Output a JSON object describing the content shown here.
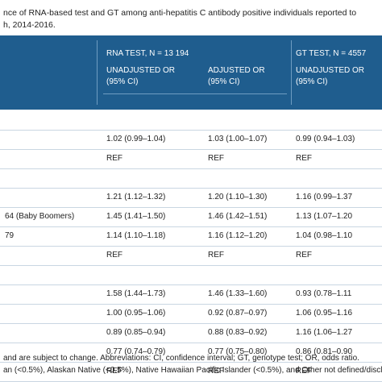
{
  "caption": {
    "line1": "nce of RNA-based test and GT among anti-hepatitis C antibody positive individuals reported to",
    "line2": "h, 2014-2016."
  },
  "header": {
    "rna_test": "RNA TEST, N = 13 194",
    "gt_test": "GT TEST, N = 4557",
    "unadj_rna_1": "UNADJUSTED OR",
    "unadj_rna_2": "(95% CI)",
    "adj_rna_1": "ADJUSTED OR",
    "adj_rna_2": "(95% CI)",
    "unadj_gt_1": "UNADJUSTED OR",
    "unadj_gt_2": "(95% CI)"
  },
  "rows": [
    {
      "label": "",
      "rna_unadj": "",
      "rna_adj": "",
      "gt_unadj": ""
    },
    {
      "label": "",
      "rna_unadj": "1.02 (0.99–1.04)",
      "rna_adj": "1.03 (1.00–1.07)",
      "gt_unadj": "0.99 (0.94–1.03)"
    },
    {
      "label": "",
      "rna_unadj": "REF",
      "rna_adj": "REF",
      "gt_unadj": "REF"
    },
    {
      "label": "",
      "rna_unadj": "",
      "rna_adj": "",
      "gt_unadj": ""
    },
    {
      "label": "",
      "rna_unadj": "1.21 (1.12–1.32)",
      "rna_adj": "1.20 (1.10–1.30)",
      "gt_unadj": "1.16 (0.99–1.37"
    },
    {
      "label": "64 (Baby Boomers)",
      "rna_unadj": "1.45 (1.41–1.50)",
      "rna_adj": "1.46 (1.42–1.51)",
      "gt_unadj": "1.13 (1.07–1.20"
    },
    {
      "label": "79",
      "rna_unadj": "1.14 (1.10–1.18)",
      "rna_adj": "1.16 (1.12–1.20)",
      "gt_unadj": "1.04 (0.98–1.10"
    },
    {
      "label": "",
      "rna_unadj": "REF",
      "rna_adj": "REF",
      "gt_unadj": "REF"
    },
    {
      "label": "",
      "rna_unadj": "",
      "rna_adj": "",
      "gt_unadj": ""
    },
    {
      "label": "",
      "rna_unadj": "1.58 (1.44–1.73)",
      "rna_adj": "1.46 (1.33–1.60)",
      "gt_unadj": "0.93 (0.78–1.11"
    },
    {
      "label": "",
      "rna_unadj": "1.00 (0.95–1.06)",
      "rna_adj": "0.92 (0.87–0.97)",
      "gt_unadj": "1.06 (0.95–1.16"
    },
    {
      "label": "",
      "rna_unadj": "0.89 (0.85–0.94)",
      "rna_adj": "0.88 (0.83–0.92)",
      "gt_unadj": "1.16 (1.06–1.27"
    },
    {
      "label": "",
      "rna_unadj": "0.77 (0.74–0.79)",
      "rna_adj": "0.77 (0.75–0.80)",
      "gt_unadj": "0.86 (0.81–0.90"
    },
    {
      "label": "",
      "rna_unadj": "REF",
      "rna_adj": "REF",
      "gt_unadj": "REF"
    }
  ],
  "footnote": {
    "line1": "and are subject to change. Abbreviations: CI, confidence interval; GT, genotype test; OR, odds ratio.",
    "line2": "an (<0.5%), Alaskan Native (<0.5%), Native Hawaiian Pacific Islander (<0.5%), and Other not defined/discl"
  }
}
